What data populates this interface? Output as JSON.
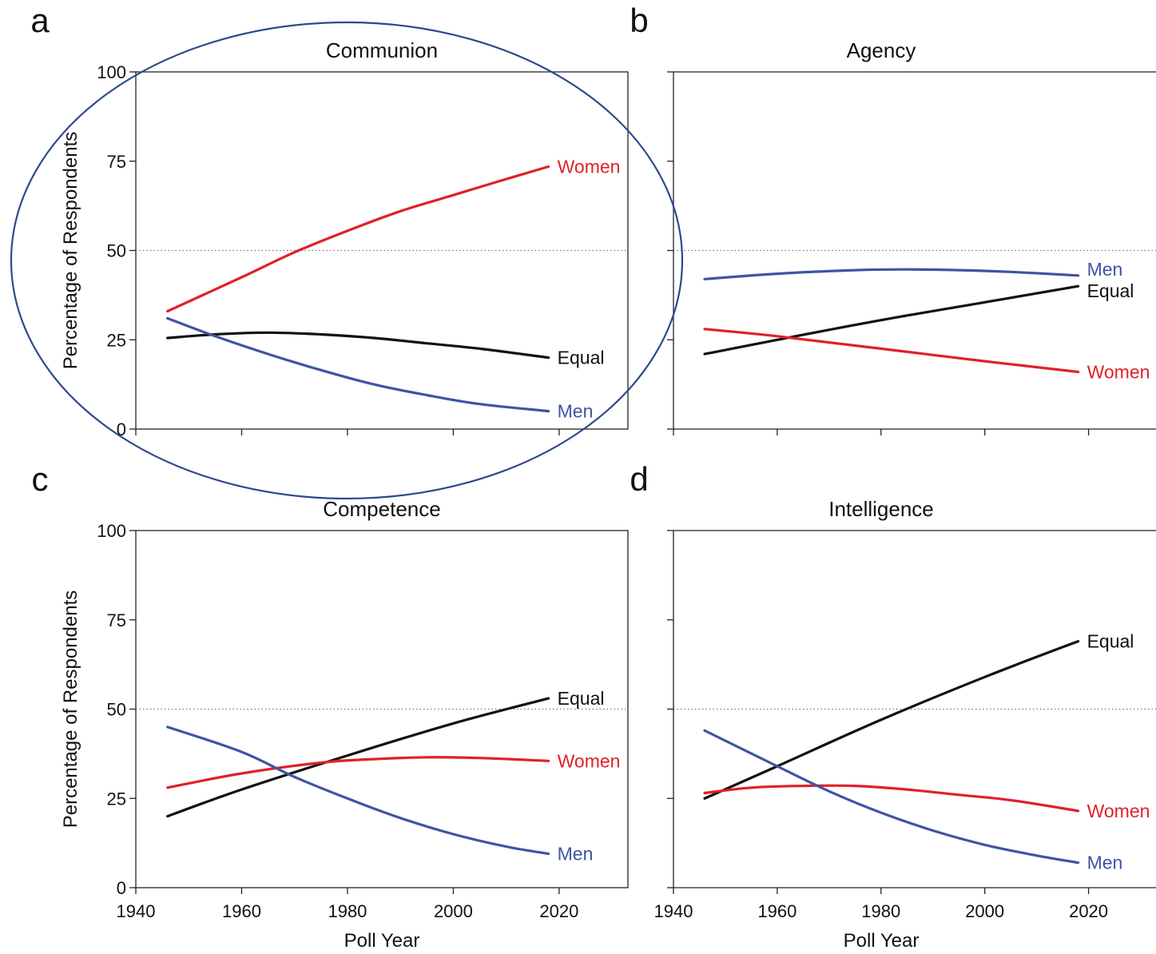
{
  "colors": {
    "women": "#e0202a",
    "men": "#3f54a3",
    "equal": "#111111",
    "highlight": "#2e4a8c"
  },
  "y_ticks": [
    "0",
    "25",
    "50",
    "75",
    "100"
  ],
  "x_ticks": [
    "1940",
    "1960",
    "1980",
    "2000",
    "2020"
  ],
  "ylabel": "Percentage of Respondents",
  "xlabel": "Poll Year",
  "chart_data": [
    {
      "type": "line",
      "panel": "a",
      "title": "Communion",
      "ylabel": "Percentage of Respondents",
      "xlabel": "",
      "xlim": [
        1940,
        2033
      ],
      "ylim": [
        0,
        100
      ],
      "reference_line": 50,
      "highlighted": true,
      "series": [
        {
          "name": "Women",
          "key": "women",
          "x": [
            1946,
            1960,
            1970,
            1980,
            1990,
            2000,
            2010,
            2018
          ],
          "values": [
            33,
            42.5,
            49.5,
            55.5,
            61,
            65.5,
            70,
            73.5
          ]
        },
        {
          "name": "Equal",
          "key": "equal",
          "x": [
            1946,
            1955,
            1965,
            1975,
            1985,
            1995,
            2005,
            2018
          ],
          "values": [
            25.5,
            26.5,
            27,
            26.5,
            25.5,
            24,
            22.5,
            20
          ]
        },
        {
          "name": "Men",
          "key": "men",
          "x": [
            1946,
            1955,
            1965,
            1975,
            1985,
            1995,
            2005,
            2018
          ],
          "values": [
            31,
            26,
            21,
            16.5,
            12.5,
            9.5,
            7,
            5
          ]
        }
      ]
    },
    {
      "type": "line",
      "panel": "b",
      "title": "Agency",
      "ylabel": "",
      "xlabel": "",
      "xlim": [
        1940,
        2033
      ],
      "ylim": [
        0,
        100
      ],
      "reference_line": 50,
      "highlighted": false,
      "series": [
        {
          "name": "Men",
          "key": "men",
          "x": [
            1946,
            1960,
            1975,
            1985,
            1995,
            2005,
            2018
          ],
          "values": [
            42,
            43.5,
            44.5,
            44.7,
            44.5,
            44,
            43
          ]
        },
        {
          "name": "Equal",
          "key": "equal",
          "x": [
            1946,
            1960,
            1980,
            2000,
            2018
          ],
          "values": [
            21,
            25,
            30.5,
            35.5,
            40
          ]
        },
        {
          "name": "Women",
          "key": "women",
          "x": [
            1946,
            1960,
            1980,
            2000,
            2018
          ],
          "values": [
            28,
            26,
            22.5,
            19,
            16
          ]
        }
      ]
    },
    {
      "type": "line",
      "panel": "c",
      "title": "Competence",
      "ylabel": "Percentage of Respondents",
      "xlabel": "Poll Year",
      "xlim": [
        1940,
        2033
      ],
      "ylim": [
        0,
        100
      ],
      "reference_line": 50,
      "highlighted": false,
      "series": [
        {
          "name": "Equal",
          "key": "equal",
          "x": [
            1946,
            1960,
            1980,
            2000,
            2018
          ],
          "values": [
            20,
            27.5,
            37,
            46,
            53
          ]
        },
        {
          "name": "Women",
          "key": "women",
          "x": [
            1946,
            1960,
            1975,
            1985,
            1995,
            2005,
            2018
          ],
          "values": [
            28,
            32,
            35,
            36,
            36.5,
            36.3,
            35.5
          ]
        },
        {
          "name": "Men",
          "key": "men",
          "x": [
            1946,
            1960,
            1970,
            1980,
            1990,
            2000,
            2010,
            2018
          ],
          "values": [
            45,
            38,
            31,
            25,
            19.5,
            15,
            11.5,
            9.5
          ]
        }
      ]
    },
    {
      "type": "line",
      "panel": "d",
      "title": "Intelligence",
      "ylabel": "",
      "xlabel": "Poll Year",
      "xlim": [
        1940,
        2033
      ],
      "ylim": [
        0,
        100
      ],
      "reference_line": 50,
      "highlighted": false,
      "series": [
        {
          "name": "Equal",
          "key": "equal",
          "x": [
            1946,
            1960,
            1980,
            2000,
            2018
          ],
          "values": [
            25,
            34,
            47,
            59,
            69
          ]
        },
        {
          "name": "Women",
          "key": "women",
          "x": [
            1946,
            1955,
            1965,
            1975,
            1985,
            1995,
            2005,
            2018
          ],
          "values": [
            26.5,
            28,
            28.5,
            28.5,
            27.5,
            26,
            24.5,
            21.5
          ]
        },
        {
          "name": "Men",
          "key": "men",
          "x": [
            1946,
            1960,
            1970,
            1980,
            1990,
            2000,
            2010,
            2018
          ],
          "values": [
            44,
            34,
            27,
            21,
            16,
            12,
            9,
            7
          ]
        }
      ]
    }
  ]
}
